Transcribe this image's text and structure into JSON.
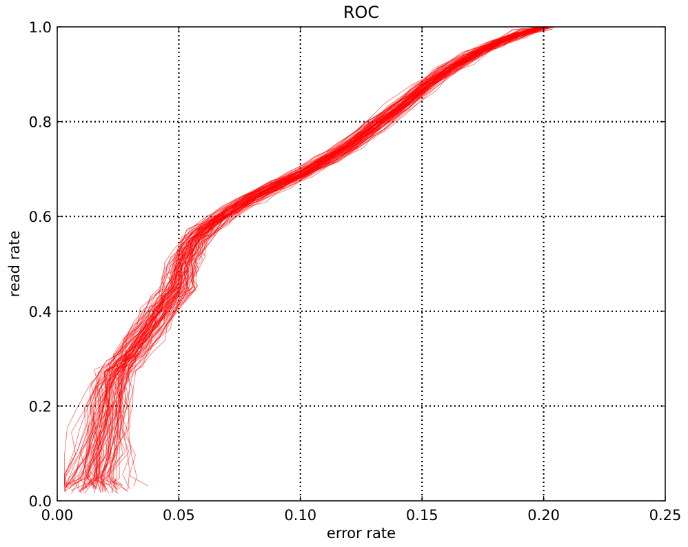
{
  "chart_data": {
    "type": "line",
    "title": "ROC",
    "xlabel": "error rate",
    "ylabel": "read rate",
    "xlim": [
      0.0,
      0.25
    ],
    "ylim": [
      0.0,
      1.0
    ],
    "xticks": [
      "0.00",
      "0.05",
      "0.10",
      "0.15",
      "0.20",
      "0.25"
    ],
    "yticks": [
      "0.0",
      "0.2",
      "0.4",
      "0.6",
      "0.8",
      "1.0"
    ],
    "grid": true,
    "line_color": "#ff0000",
    "replicates": 80,
    "base_curve": {
      "x": [
        0.012,
        0.014,
        0.017,
        0.019,
        0.021,
        0.022,
        0.024,
        0.027,
        0.03,
        0.034,
        0.038,
        0.042,
        0.046,
        0.049,
        0.05,
        0.051,
        0.052,
        0.054,
        0.056,
        0.06,
        0.065,
        0.072,
        0.08,
        0.09,
        0.1,
        0.11,
        0.12,
        0.13,
        0.14,
        0.15,
        0.16,
        0.17,
        0.18,
        0.19,
        0.2
      ],
      "y": [
        0.02,
        0.05,
        0.1,
        0.15,
        0.2,
        0.24,
        0.27,
        0.29,
        0.31,
        0.34,
        0.37,
        0.4,
        0.43,
        0.45,
        0.47,
        0.49,
        0.51,
        0.53,
        0.55,
        0.57,
        0.59,
        0.615,
        0.64,
        0.665,
        0.69,
        0.72,
        0.75,
        0.79,
        0.83,
        0.87,
        0.91,
        0.94,
        0.965,
        0.985,
        1.0
      ]
    },
    "spread": {
      "y": [
        0.0,
        0.15,
        0.3,
        0.45,
        0.6,
        0.8,
        1.0
      ],
      "x_sd": [
        0.009,
        0.006,
        0.004,
        0.004,
        0.003,
        0.003,
        0.002
      ]
    }
  }
}
